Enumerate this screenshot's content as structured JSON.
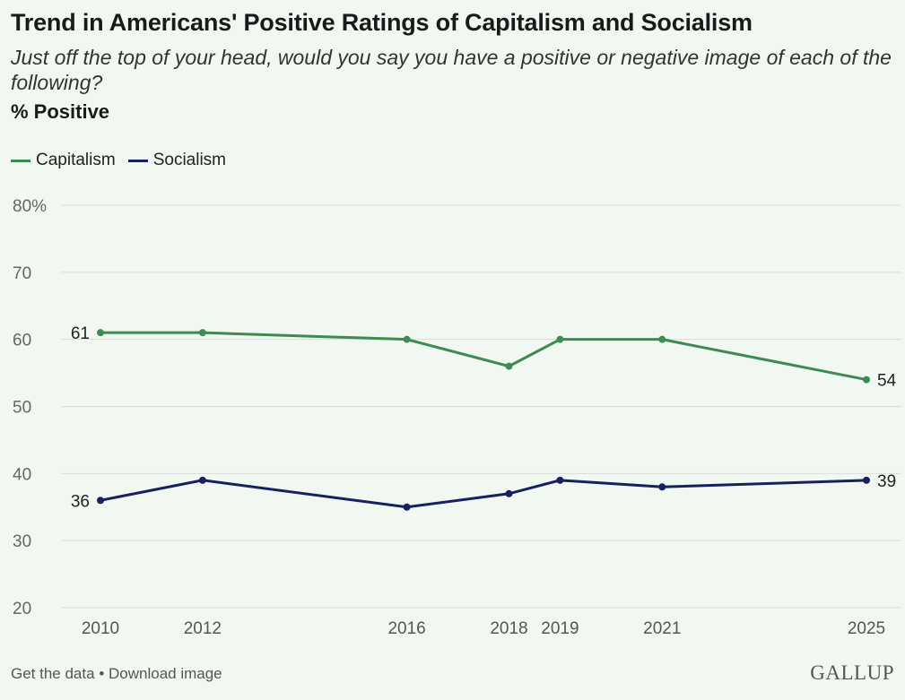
{
  "chart_data": {
    "type": "line",
    "title": "Trend in Americans' Positive Ratings of Capitalism and Socialism",
    "subtitle": "Just off the top of your head, would you say you have a positive or negative image of each of the following?",
    "metric_label": "% Positive",
    "x": [
      2010,
      2012,
      2016,
      2018,
      2019,
      2021,
      2025
    ],
    "x_tick_labels": [
      "2010",
      "2012",
      "2016",
      "2018",
      "2019",
      "2021",
      "2025"
    ],
    "y_ticks": [
      20,
      30,
      40,
      50,
      60,
      70,
      80
    ],
    "y_tick_labels": [
      "20",
      "30",
      "40",
      "50",
      "60",
      "70",
      "80%"
    ],
    "ylim": [
      20,
      80
    ],
    "grid": true,
    "legend_position": "top-left",
    "series": [
      {
        "name": "Capitalism",
        "color": "#3d8b52",
        "values": [
          61,
          61,
          60,
          56,
          60,
          60,
          54
        ],
        "start_label": "61",
        "end_label": "54"
      },
      {
        "name": "Socialism",
        "color": "#15225e",
        "values": [
          36,
          39,
          35,
          37,
          39,
          38,
          39
        ],
        "start_label": "36",
        "end_label": "39"
      }
    ]
  },
  "footer": {
    "get_data": "Get the data",
    "separator": "•",
    "download": "Download image"
  },
  "logo": "GALLUP"
}
